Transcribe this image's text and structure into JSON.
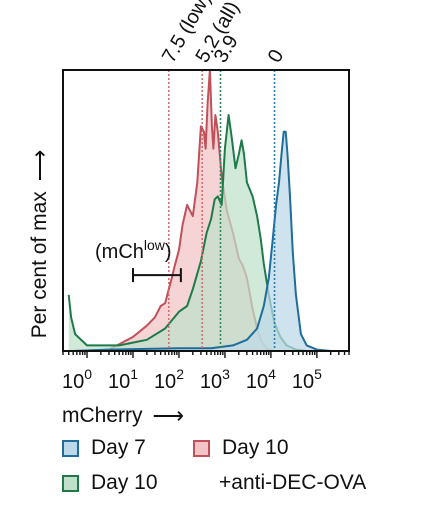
{
  "chart_data": {
    "type": "area",
    "xlabel": "mCherry",
    "ylabel": "Per cent of max",
    "x_scale": "log",
    "xlim": [
      0.3,
      500000
    ],
    "ylim": [
      0,
      100
    ],
    "x_ticks": [
      1,
      10,
      100,
      1000,
      10000,
      100000
    ],
    "x_tick_labels": [
      {
        "base": "10",
        "exp": "0"
      },
      {
        "base": "10",
        "exp": "1"
      },
      {
        "base": "10",
        "exp": "2"
      },
      {
        "base": "10",
        "exp": "3"
      },
      {
        "base": "10",
        "exp": "4"
      },
      {
        "base": "10",
        "exp": "5"
      }
    ],
    "series": [
      {
        "name": "Day 10 +anti-DEC-OVA",
        "fill": "#f2c4c6",
        "stroke": "#c0505a",
        "points": [
          [
            0.5,
            0
          ],
          [
            3,
            0.5
          ],
          [
            10,
            5
          ],
          [
            20,
            9
          ],
          [
            30,
            12
          ],
          [
            40,
            16
          ],
          [
            50,
            17
          ],
          [
            60,
            22
          ],
          [
            70,
            26
          ],
          [
            80,
            30
          ],
          [
            100,
            36
          ],
          [
            120,
            45
          ],
          [
            150,
            52
          ],
          [
            200,
            48
          ],
          [
            250,
            60
          ],
          [
            300,
            80
          ],
          [
            350,
            78
          ],
          [
            380,
            72
          ],
          [
            420,
            88
          ],
          [
            470,
            100
          ],
          [
            520,
            80
          ],
          [
            560,
            72
          ],
          [
            620,
            84
          ],
          [
            700,
            78
          ],
          [
            850,
            62
          ],
          [
            1100,
            50
          ],
          [
            1500,
            42
          ],
          [
            2000,
            33
          ],
          [
            2500,
            30
          ],
          [
            3000,
            26
          ],
          [
            4000,
            15
          ],
          [
            5000,
            8
          ],
          [
            6000,
            4
          ],
          [
            8000,
            1
          ],
          [
            12000,
            0
          ]
        ]
      },
      {
        "name": "Day 10",
        "fill": "#bfe0cb",
        "stroke": "#1f7a4a",
        "points": [
          [
            0.4,
            20
          ],
          [
            0.45,
            12
          ],
          [
            0.55,
            6
          ],
          [
            1,
            2
          ],
          [
            5,
            2
          ],
          [
            20,
            4
          ],
          [
            50,
            8
          ],
          [
            100,
            14
          ],
          [
            150,
            16
          ],
          [
            200,
            22
          ],
          [
            300,
            32
          ],
          [
            400,
            42
          ],
          [
            500,
            47
          ],
          [
            600,
            54
          ],
          [
            700,
            55
          ],
          [
            850,
            52
          ],
          [
            1000,
            72
          ],
          [
            1200,
            84
          ],
          [
            1400,
            76
          ],
          [
            1700,
            65
          ],
          [
            2000,
            70
          ],
          [
            2300,
            75
          ],
          [
            2600,
            70
          ],
          [
            3000,
            60
          ],
          [
            4000,
            55
          ],
          [
            5000,
            48
          ],
          [
            6000,
            40
          ],
          [
            7000,
            31
          ],
          [
            9000,
            20
          ],
          [
            12000,
            10
          ],
          [
            16000,
            5
          ],
          [
            22000,
            2
          ],
          [
            35000,
            0.5
          ],
          [
            60000,
            0
          ]
        ]
      },
      {
        "name": "Day 7",
        "fill": "#bcd8e8",
        "stroke": "#1e6d9a",
        "points": [
          [
            0.5,
            0
          ],
          [
            3,
            0.5
          ],
          [
            100,
            1
          ],
          [
            500,
            1
          ],
          [
            1500,
            2
          ],
          [
            3000,
            4
          ],
          [
            5000,
            8
          ],
          [
            7000,
            16
          ],
          [
            9000,
            26
          ],
          [
            11000,
            40
          ],
          [
            13000,
            52
          ],
          [
            15000,
            60
          ],
          [
            17000,
            70
          ],
          [
            19000,
            78
          ],
          [
            21000,
            78
          ],
          [
            23000,
            70
          ],
          [
            26000,
            55
          ],
          [
            30000,
            35
          ],
          [
            35000,
            20
          ],
          [
            45000,
            6
          ],
          [
            60000,
            2
          ],
          [
            100000,
            0.5
          ],
          [
            200000,
            0
          ]
        ]
      }
    ],
    "reference_lines": [
      {
        "x": 60,
        "color": "#d07070",
        "label": "7.5 (low)"
      },
      {
        "x": 320,
        "color": "#d07070",
        "label": "5.2 (all)"
      },
      {
        "x": 800,
        "color": "#2a8a55",
        "label": "3.9"
      },
      {
        "x": 12000,
        "color": "#2a7db0",
        "label": "0"
      }
    ],
    "gate": {
      "label_base": "(mCh",
      "label_sup": "low",
      "label_end": ")",
      "x_range": [
        10,
        110
      ],
      "y": 27
    },
    "colors": {
      "axis": "#111111"
    }
  },
  "legend": [
    {
      "label": "Day 7",
      "fill": "#bcd8e8",
      "stroke": "#1e6d9a"
    },
    {
      "label": "Day 10",
      "fill": "#f2c4c6",
      "stroke": "#c0505a"
    },
    {
      "label": "Day 10",
      "fill": "#bfe0cb",
      "stroke": "#1f7a4a"
    },
    {
      "label": "+anti-DEC-OVA"
    }
  ]
}
